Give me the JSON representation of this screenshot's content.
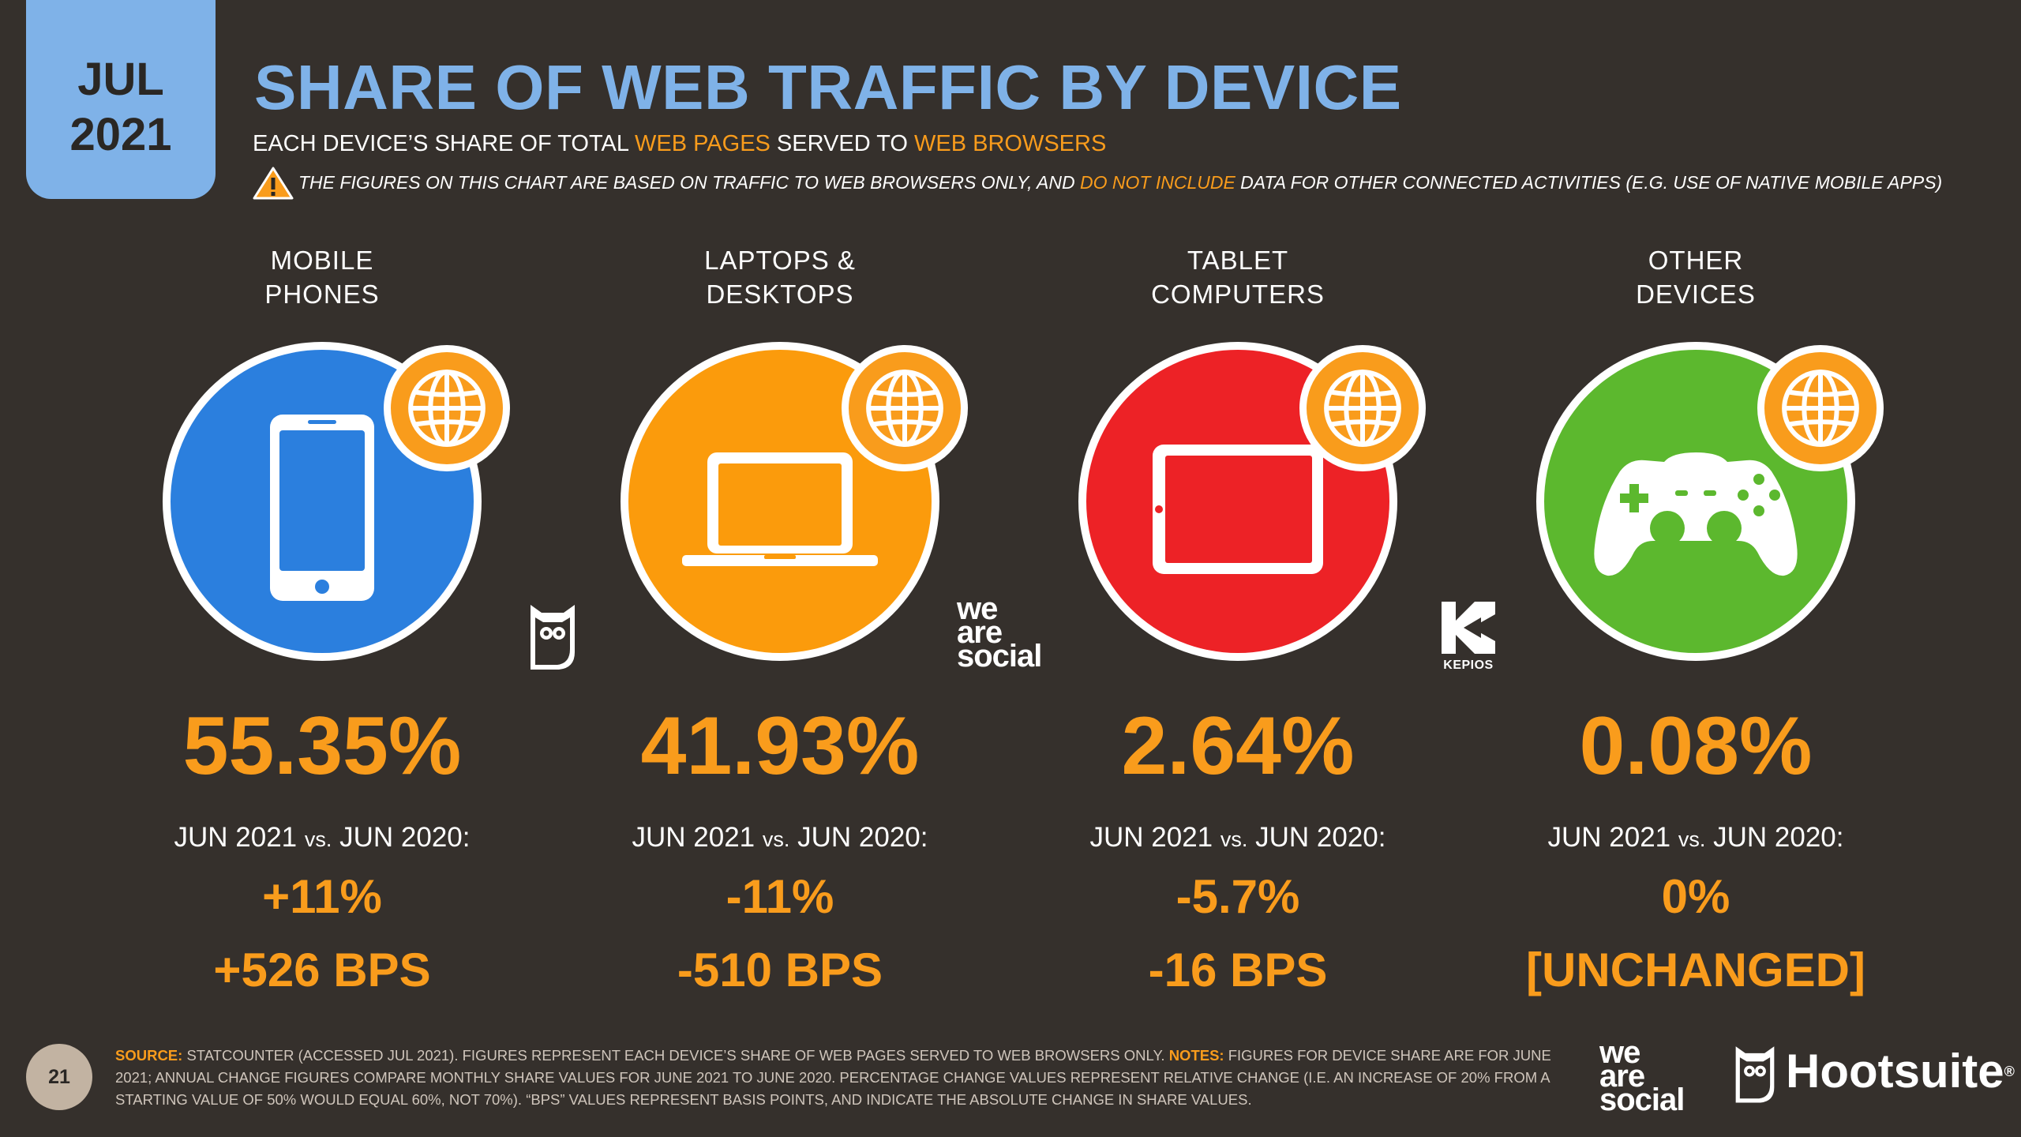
{
  "header": {
    "badge_month": "JUL",
    "badge_year": "2021",
    "title": "SHARE OF WEB TRAFFIC BY DEVICE",
    "subtitle_part1": "EACH DEVICE’S SHARE OF TOTAL ",
    "subtitle_hl1": "WEB PAGES",
    "subtitle_part2": " SERVED TO ",
    "subtitle_hl2": "WEB BROWSERS",
    "warning_part1": "THE FIGURES ON THIS CHART ARE BASED ON TRAFFIC TO WEB BROWSERS ONLY, AND ",
    "warning_hl": "DO NOT INCLUDE",
    "warning_part2": " DATA FOR OTHER CONNECTED ACTIVITIES (E.G. USE OF NATIVE MOBILE APPS)"
  },
  "chart_data": {
    "type": "table",
    "title": "SHARE OF WEB TRAFFIC BY DEVICE",
    "comparison_label_a": "JUN 2021 ",
    "comparison_label_vs": "vs.",
    "comparison_label_b": " JUN 2020:",
    "devices": [
      {
        "label_line1": "MOBILE",
        "label_line2": "PHONES",
        "share": "55.35%",
        "share_value": 55.35,
        "relative_change": "+11%",
        "absolute_change": "+526 BPS",
        "icon": "smartphone-icon",
        "color": "#2b7fde"
      },
      {
        "label_line1": "LAPTOPS &",
        "label_line2": "DESKTOPS",
        "share": "41.93%",
        "share_value": 41.93,
        "relative_change": "-11%",
        "absolute_change": "-510 BPS",
        "icon": "laptop-icon",
        "color": "#fb9b0c"
      },
      {
        "label_line1": "TABLET",
        "label_line2": "COMPUTERS",
        "share": "2.64%",
        "share_value": 2.64,
        "relative_change": "-5.7%",
        "absolute_change": "-16 BPS",
        "icon": "tablet-icon",
        "color": "#ed2226"
      },
      {
        "label_line1": "OTHER",
        "label_line2": "DEVICES",
        "share": "0.08%",
        "share_value": 0.08,
        "relative_change": "0%",
        "absolute_change": "[UNCHANGED]",
        "icon": "gamepad-icon",
        "color": "#5cb82e"
      }
    ]
  },
  "logos": {
    "wearesocial_line1": "we",
    "wearesocial_line2": "are",
    "wearesocial_line3": "social",
    "kepios": "KEPIOS",
    "hootsuite": "Hootsuite",
    "hootsuite_mark": "®"
  },
  "footer": {
    "page_number": "21",
    "source_label": "SOURCE:",
    "source_text": " STATCOUNTER (ACCESSED JUL 2021). FIGURES REPRESENT EACH DEVICE’S SHARE OF WEB PAGES SERVED TO WEB BROWSERS ONLY. ",
    "notes_label": "NOTES:",
    "notes_text": " FIGURES FOR DEVICE SHARE ARE FOR JUNE 2021; ANNUAL CHANGE FIGURES COMPARE MONTHLY SHARE VALUES FOR JUNE 2021 TO JUNE 2020. PERCENTAGE CHANGE VALUES REPRESENT RELATIVE CHANGE (I.E. AN INCREASE OF 20% FROM A STARTING VALUE OF 50% WOULD EQUAL 60%, NOT 70%). “BPS” VALUES REPRESENT BASIS POINTS, AND INDICATE THE ABSOLUTE CHANGE IN SHARE VALUES."
  },
  "colors": {
    "background": "#35302c",
    "accent_blue": "#7fb2e8",
    "accent_orange": "#f99c1c"
  }
}
